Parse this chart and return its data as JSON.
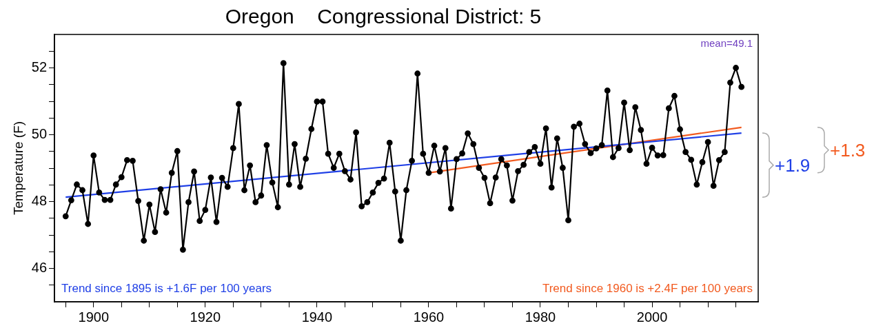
{
  "chart_data": {
    "type": "line",
    "title": "Oregon    Congressional District: 5",
    "ylabel": "Temperature (F)",
    "x": [
      1895,
      1896,
      1897,
      1898,
      1899,
      1900,
      1901,
      1902,
      1903,
      1904,
      1905,
      1906,
      1907,
      1908,
      1909,
      1910,
      1911,
      1912,
      1913,
      1914,
      1915,
      1916,
      1917,
      1918,
      1919,
      1920,
      1921,
      1922,
      1923,
      1924,
      1925,
      1926,
      1927,
      1928,
      1929,
      1930,
      1931,
      1932,
      1933,
      1934,
      1935,
      1936,
      1937,
      1938,
      1939,
      1940,
      1941,
      1942,
      1943,
      1944,
      1945,
      1946,
      1947,
      1948,
      1949,
      1950,
      1951,
      1952,
      1953,
      1954,
      1955,
      1956,
      1957,
      1958,
      1959,
      1960,
      1961,
      1962,
      1963,
      1964,
      1965,
      1966,
      1967,
      1968,
      1969,
      1970,
      1971,
      1972,
      1973,
      1974,
      1975,
      1976,
      1977,
      1978,
      1979,
      1980,
      1981,
      1982,
      1983,
      1984,
      1985,
      1986,
      1987,
      1988,
      1989,
      1990,
      1991,
      1992,
      1993,
      1994,
      1995,
      1996,
      1997,
      1998,
      1999,
      2000,
      2001,
      2002,
      2003,
      2004,
      2005,
      2006,
      2007,
      2008,
      2009,
      2010,
      2011,
      2012,
      2013,
      2014,
      2015,
      2016
    ],
    "series": [
      {
        "color": "#000000",
        "marker": "circle",
        "values": [
          47.56,
          48.04,
          48.51,
          48.34,
          47.33,
          49.38,
          48.27,
          48.05,
          48.05,
          48.51,
          48.73,
          49.24,
          49.22,
          48.02,
          46.83,
          47.91,
          47.09,
          48.37,
          47.67,
          48.86,
          49.51,
          46.56,
          47.98,
          48.9,
          47.42,
          47.75,
          48.72,
          47.39,
          48.71,
          48.44,
          49.6,
          50.92,
          48.34,
          49.08,
          47.98,
          48.18,
          49.69,
          48.57,
          47.83,
          52.14,
          48.51,
          49.72,
          48.44,
          49.28,
          50.17,
          50.99,
          50.99,
          49.43,
          49.01,
          49.43,
          48.91,
          48.66,
          50.07,
          47.86,
          47.98,
          48.27,
          48.56,
          48.69,
          49.76,
          48.3,
          46.83,
          48.34,
          49.22,
          51.83,
          49.43,
          48.86,
          49.67,
          48.9,
          49.6,
          47.79,
          49.27,
          49.44,
          50.04,
          49.72,
          49.01,
          48.71,
          47.95,
          48.72,
          49.27,
          49.08,
          48.03,
          48.91,
          49.1,
          49.48,
          49.63,
          49.13,
          50.19,
          48.42,
          49.89,
          49.01,
          47.44,
          50.24,
          50.33,
          49.72,
          49.45,
          49.59,
          49.69,
          51.32,
          49.33,
          49.6,
          50.96,
          49.54,
          50.82,
          50.14,
          49.13,
          49.61,
          49.38,
          49.39,
          50.79,
          51.16,
          50.16,
          49.48,
          49.25,
          48.51,
          49.18,
          49.78,
          48.47,
          49.24,
          49.48,
          51.56,
          52.0,
          51.43
        ]
      },
      {
        "type": "line",
        "color": "#1f3fe6",
        "marker": "none",
        "x": [
          1895,
          2016
        ],
        "values": [
          48.13,
          50.05
        ]
      },
      {
        "type": "line",
        "color": "#f25a1f",
        "marker": "none",
        "x": [
          1960,
          2016
        ],
        "values": [
          48.86,
          50.22
        ]
      }
    ],
    "xlim": [
      1893,
      2019
    ],
    "xticks": [
      {
        "value": 1895,
        "label": null
      },
      1900,
      {
        "value": 1905,
        "label": null
      },
      {
        "value": 1910,
        "label": null
      },
      {
        "value": 1915,
        "label": null
      },
      1920,
      {
        "value": 1925,
        "label": null
      },
      {
        "value": 1930,
        "label": null
      },
      {
        "value": 1935,
        "label": null
      },
      1940,
      {
        "value": 1945,
        "label": null
      },
      {
        "value": 1950,
        "label": null
      },
      {
        "value": 1955,
        "label": null
      },
      1960,
      {
        "value": 1965,
        "label": null
      },
      {
        "value": 1970,
        "label": null
      },
      {
        "value": 1975,
        "label": null
      },
      1980,
      {
        "value": 1985,
        "label": null
      },
      {
        "value": 1990,
        "label": null
      },
      {
        "value": 1995,
        "label": null
      },
      2000,
      {
        "value": 2005,
        "label": null
      },
      {
        "value": 2010,
        "label": null
      },
      {
        "value": 2015,
        "label": null
      }
    ],
    "ylim": [
      45,
      53
    ],
    "yticks": [
      {
        "value": 45.5,
        "label": null
      },
      46,
      {
        "value": 46.5,
        "label": null
      },
      {
        "value": 47,
        "label": null
      },
      {
        "value": 47.5,
        "label": null
      },
      48,
      {
        "value": 48.5,
        "label": null
      },
      {
        "value": 49,
        "label": null
      },
      {
        "value": 49.5,
        "label": null
      },
      50,
      {
        "value": 50.5,
        "label": null
      },
      {
        "value": 51,
        "label": null
      },
      {
        "value": 51.5,
        "label": null
      },
      52,
      {
        "value": 52.5,
        "label": null
      }
    ],
    "annotations": [
      "mean=49.1",
      "Trend since 1895 is +1.6F per 100 years",
      "Trend since 1960 is +2.4F per 100 years",
      "+1.9",
      "+1.3"
    ]
  }
}
